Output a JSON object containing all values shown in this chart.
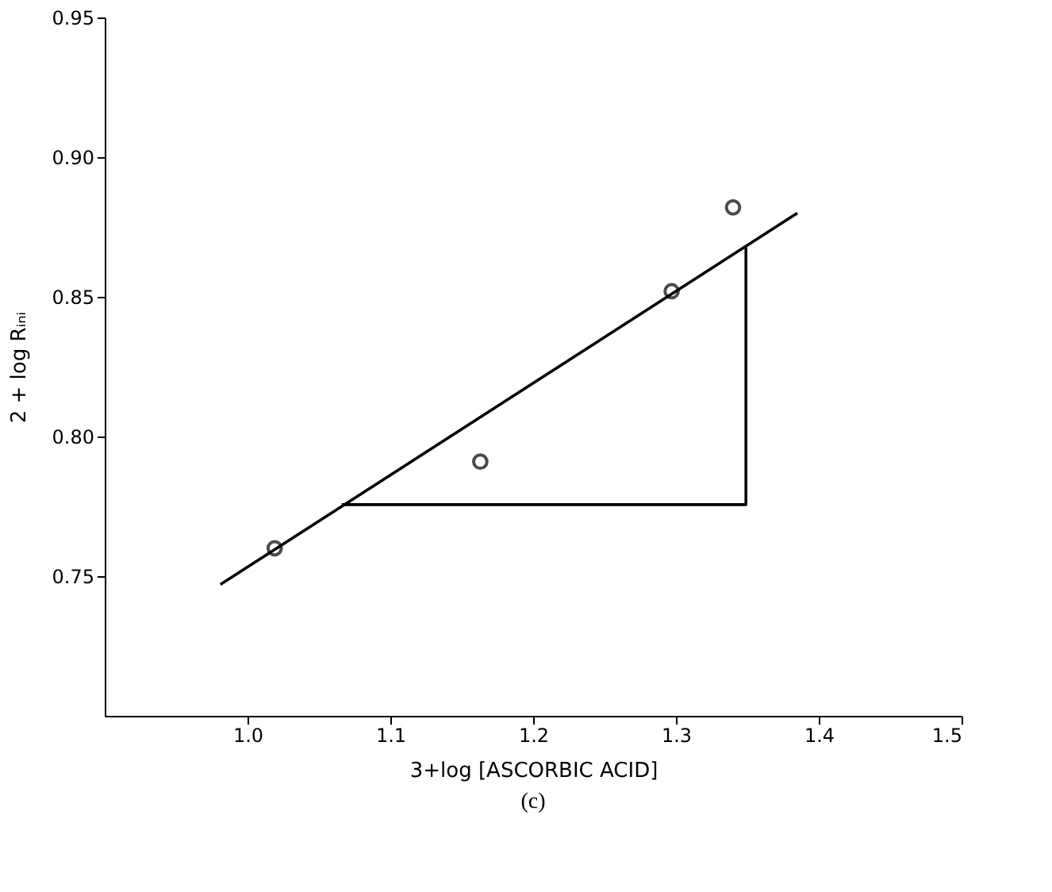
{
  "chart_data": {
    "type": "scatter",
    "xlabel": "3+log [ASCORBIC ACID]",
    "ylabel": "2 + log Rᵢₙᵢ",
    "annotations": [
      "(c)"
    ],
    "xlim": [
      0.9,
      1.5
    ],
    "ylim": [
      0.7,
      0.95
    ],
    "xticks": [
      {
        "value": 1.0,
        "label": "1.0"
      },
      1.1,
      1.2,
      1.3,
      1.4,
      1.5
    ],
    "yticks": [
      0.75,
      {
        "value": 0.8,
        "label": "0.80"
      },
      0.85,
      {
        "value": 0.9,
        "label": "0.90"
      },
      0.95
    ],
    "grid": false,
    "series": [
      {
        "color": "#000000",
        "marker": "circle",
        "x": [
          1.019,
          1.163,
          1.297,
          1.34
        ],
        "values": [
          0.76,
          0.791,
          0.852,
          0.882
        ]
      },
      {
        "type": "line",
        "color": "#000000",
        "x": [
          0.981,
          1.385
        ],
        "values": [
          0.747,
          0.88
        ]
      },
      {
        "type": "line",
        "color": "#000000",
        "x": [
          1.066,
          1.349,
          1.349
        ],
        "values": [
          0.7756,
          0.7756,
          0.868
        ]
      }
    ]
  }
}
